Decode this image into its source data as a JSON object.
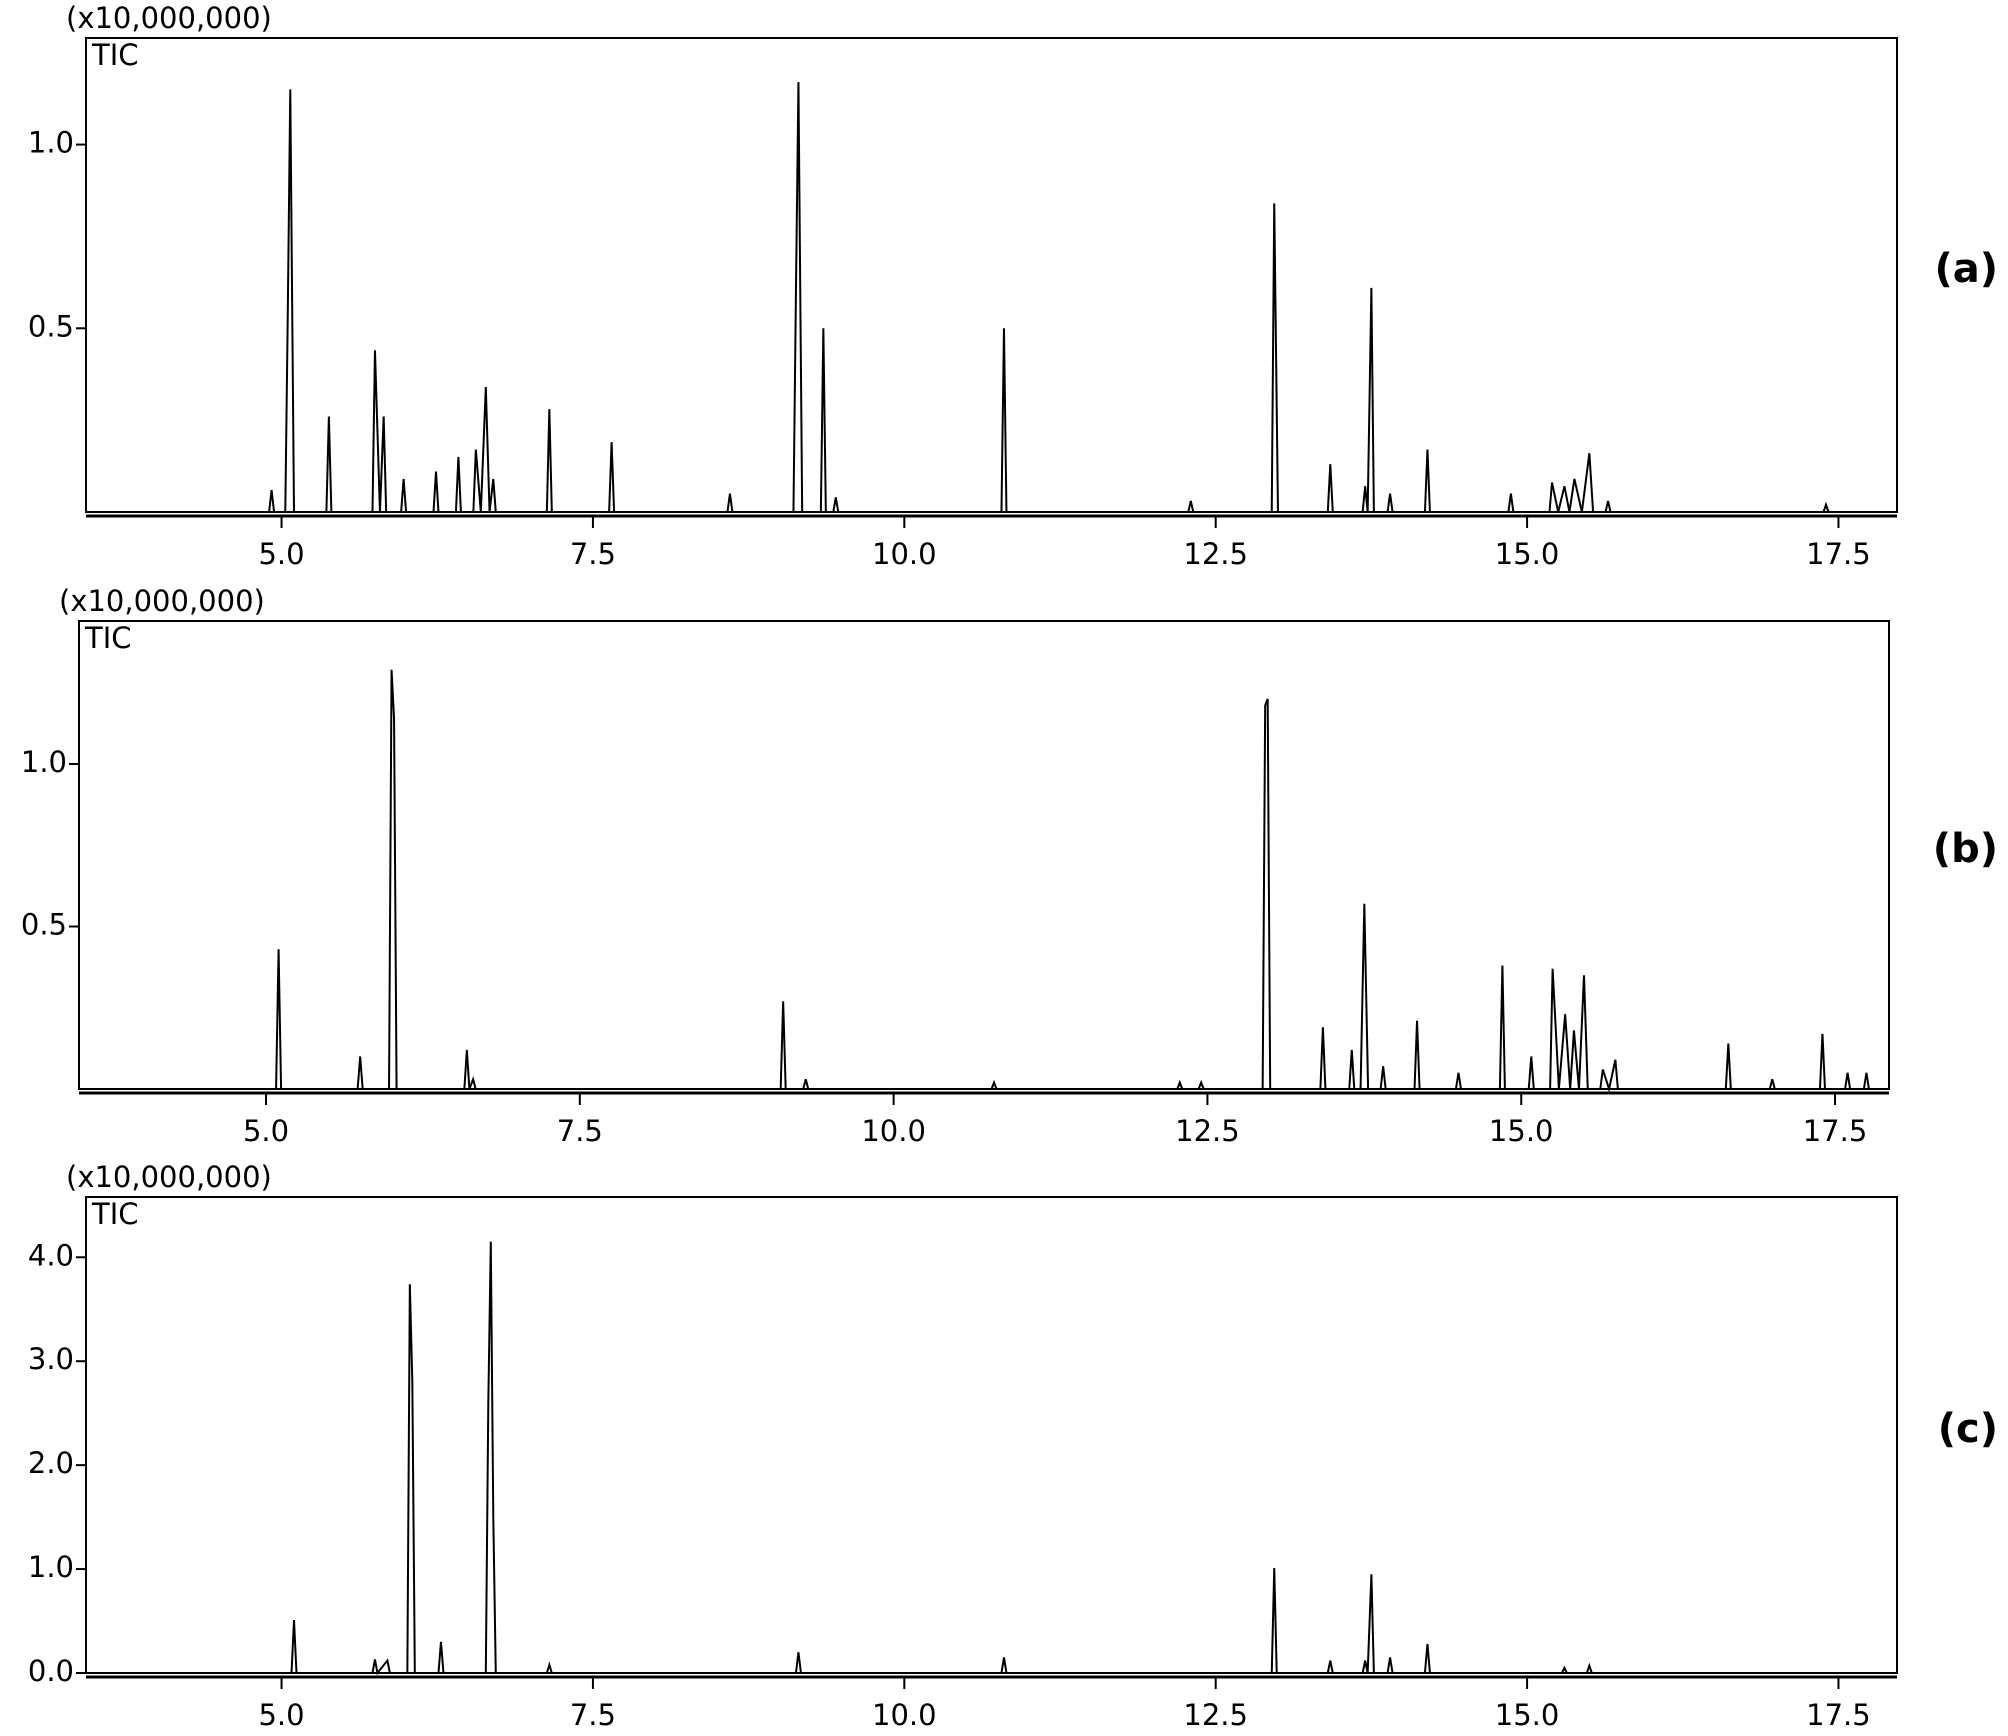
{
  "chart_data": [
    {
      "type": "line",
      "ylabel": "(x10,000,000)",
      "panel_label": "(a)",
      "xlim": [
        3.43,
        17.97
      ],
      "ylim": [
        0,
        1.29
      ],
      "xticks": [
        {
          "value": 5,
          "label": "5.0"
        },
        7.5,
        {
          "value": 10,
          "label": "10.0"
        },
        12.5,
        {
          "value": 15,
          "label": "15.0"
        },
        17.5
      ],
      "yticks": [
        0.5,
        {
          "value": 1,
          "label": "1.0"
        }
      ],
      "x": [
        3.45,
        4.9,
        4.92,
        4.94,
        5.03,
        5.05,
        5.07,
        5.1,
        5.36,
        5.38,
        5.4,
        5.73,
        5.75,
        5.79,
        5.82,
        5.84,
        5.96,
        5.98,
        6.0,
        6.22,
        6.24,
        6.26,
        6.4,
        6.42,
        6.44,
        6.54,
        6.56,
        6.6,
        6.64,
        6.67,
        6.7,
        6.72,
        7.13,
        7.15,
        7.17,
        7.63,
        7.65,
        7.67,
        8.58,
        8.6,
        8.62,
        9.11,
        9.13,
        9.15,
        9.18,
        9.33,
        9.35,
        9.37,
        9.43,
        9.45,
        9.47,
        10.78,
        10.8,
        10.82,
        12.28,
        12.3,
        12.32,
        12.95,
        12.97,
        13.0,
        13.4,
        13.42,
        13.44,
        13.68,
        13.7,
        13.72,
        13.75,
        13.77,
        13.88,
        13.9,
        13.92,
        14.18,
        14.2,
        14.22,
        14.85,
        14.87,
        14.89,
        15.18,
        15.2,
        15.25,
        15.3,
        15.34,
        15.38,
        15.44,
        15.5,
        15.53,
        15.63,
        15.65,
        15.67,
        17.38,
        17.4,
        17.42,
        17.95
      ],
      "series": [
        {
          "name": "TIC",
          "color": "#000000",
          "values": [
            0,
            0,
            0.06,
            0,
            0,
            0.54,
            1.15,
            0,
            0,
            0.26,
            0,
            0,
            0.44,
            0,
            0.26,
            0,
            0,
            0.09,
            0,
            0,
            0.11,
            0,
            0,
            0.15,
            0,
            0,
            0.17,
            0,
            0.34,
            0,
            0.09,
            0,
            0,
            0.28,
            0,
            0,
            0.19,
            0,
            0,
            0.05,
            0,
            0,
            0.6,
            1.17,
            0,
            0,
            0.5,
            0,
            0,
            0.04,
            0,
            0,
            0.5,
            0,
            0,
            0.03,
            0,
            0,
            0.84,
            0,
            0,
            0.13,
            0,
            0,
            0.07,
            0,
            0.61,
            0,
            0,
            0.05,
            0,
            0,
            0.17,
            0,
            0,
            0.05,
            0,
            0,
            0.08,
            0,
            0.07,
            0,
            0.09,
            0,
            0.16,
            0,
            0,
            0.03,
            0,
            0,
            0.02,
            0,
            0
          ]
        }
      ]
    },
    {
      "type": "line",
      "ylabel": "(x10,000,000)",
      "panel_label": "(b)",
      "xlim": [
        3.51,
        17.93
      ],
      "ylim": [
        0,
        1.44
      ],
      "xticks": [
        {
          "value": 5,
          "label": "5.0"
        },
        7.5,
        {
          "value": 10,
          "label": "10.0"
        },
        12.5,
        {
          "value": 15,
          "label": "15.0"
        },
        17.5
      ],
      "yticks": [
        0.5,
        {
          "value": 1,
          "label": "1.0"
        }
      ],
      "x": [
        3.52,
        5.08,
        5.1,
        5.12,
        5.73,
        5.75,
        5.77,
        5.98,
        6.0,
        6.02,
        6.04,
        6.58,
        6.6,
        6.62,
        6.65,
        6.67,
        9.1,
        9.12,
        9.14,
        9.28,
        9.3,
        9.32,
        10.78,
        10.8,
        10.82,
        12.26,
        12.28,
        12.3,
        12.43,
        12.45,
        12.47,
        12.94,
        12.96,
        12.98,
        13.0,
        13.4,
        13.42,
        13.44,
        13.63,
        13.65,
        13.67,
        13.72,
        13.75,
        13.78,
        13.88,
        13.9,
        13.92,
        14.15,
        14.17,
        14.19,
        14.48,
        14.5,
        14.52,
        14.83,
        14.85,
        14.87,
        15.06,
        15.08,
        15.1,
        15.23,
        15.25,
        15.3,
        15.35,
        15.39,
        15.42,
        15.46,
        15.5,
        15.53,
        15.63,
        15.65,
        15.7,
        15.75,
        15.77,
        16.63,
        16.65,
        16.67,
        16.98,
        17.0,
        17.02,
        17.38,
        17.4,
        17.42,
        17.58,
        17.6,
        17.62,
        17.73,
        17.75,
        17.77,
        17.9
      ],
      "series": [
        {
          "name": "TIC",
          "color": "#000000",
          "values": [
            0,
            0,
            0.43,
            0,
            0,
            0.1,
            0,
            0,
            1.29,
            1.14,
            0,
            0,
            0.12,
            0,
            0.03,
            0,
            0,
            0.27,
            0,
            0,
            0.03,
            0,
            0,
            0.02,
            0,
            0,
            0.02,
            0,
            0,
            0.02,
            0,
            0,
            1.18,
            1.2,
            0,
            0,
            0.19,
            0,
            0,
            0.12,
            0,
            0,
            0.57,
            0,
            0,
            0.07,
            0,
            0,
            0.21,
            0,
            0,
            0.05,
            0,
            0,
            0.38,
            0,
            0,
            0.1,
            0,
            0,
            0.37,
            0,
            0.23,
            0,
            0.18,
            0,
            0.35,
            0,
            0,
            0.06,
            0,
            0.09,
            0,
            0,
            0.14,
            0,
            0,
            0.03,
            0,
            0,
            0.17,
            0,
            0,
            0.05,
            0,
            0,
            0.05,
            0,
            0
          ]
        }
      ]
    },
    {
      "type": "line",
      "ylabel": "(x10,000,000)",
      "panel_label": "(c)",
      "xlim": [
        3.43,
        17.97
      ],
      "ylim": [
        0,
        4.58
      ],
      "xticks": [
        {
          "value": 5,
          "label": "5.0"
        },
        7.5,
        {
          "value": 10,
          "label": "10.0"
        },
        12.5,
        {
          "value": 15,
          "label": "15.0"
        },
        17.5
      ],
      "yticks": [
        {
          "value": 0,
          "label": "0.0"
        },
        {
          "value": 1,
          "label": "1.0"
        },
        {
          "value": 2,
          "label": "2.0"
        },
        {
          "value": 3,
          "label": "3.0"
        },
        {
          "value": 4,
          "label": "4.0"
        }
      ],
      "x": [
        3.45,
        5.08,
        5.1,
        5.12,
        5.73,
        5.75,
        5.77,
        5.85,
        5.87,
        6.01,
        6.03,
        6.05,
        6.07,
        6.26,
        6.28,
        6.3,
        6.64,
        6.66,
        6.68,
        6.7,
        6.72,
        7.13,
        7.15,
        7.17,
        9.13,
        9.15,
        9.17,
        10.78,
        10.8,
        10.82,
        12.95,
        12.97,
        12.99,
        13.4,
        13.42,
        13.44,
        13.68,
        13.7,
        13.72,
        13.75,
        13.77,
        13.88,
        13.9,
        13.92,
        14.18,
        14.2,
        14.22,
        15.28,
        15.3,
        15.32,
        15.48,
        15.5,
        15.52,
        17.95
      ],
      "series": [
        {
          "name": "TIC",
          "color": "#000000",
          "values": [
            0,
            0,
            0.51,
            0,
            0,
            0.13,
            0,
            0.12,
            0,
            0,
            3.74,
            2.8,
            0,
            0,
            0.3,
            0,
            0,
            2.6,
            4.15,
            1.5,
            0,
            0,
            0.08,
            0,
            0,
            0.2,
            0,
            0,
            0.15,
            0,
            0,
            1.01,
            0,
            0,
            0.12,
            0,
            0,
            0.12,
            0,
            0.95,
            0,
            0,
            0.15,
            0,
            0,
            0.28,
            0,
            0,
            0.05,
            0,
            0,
            0.07,
            0,
            0
          ]
        }
      ]
    }
  ]
}
